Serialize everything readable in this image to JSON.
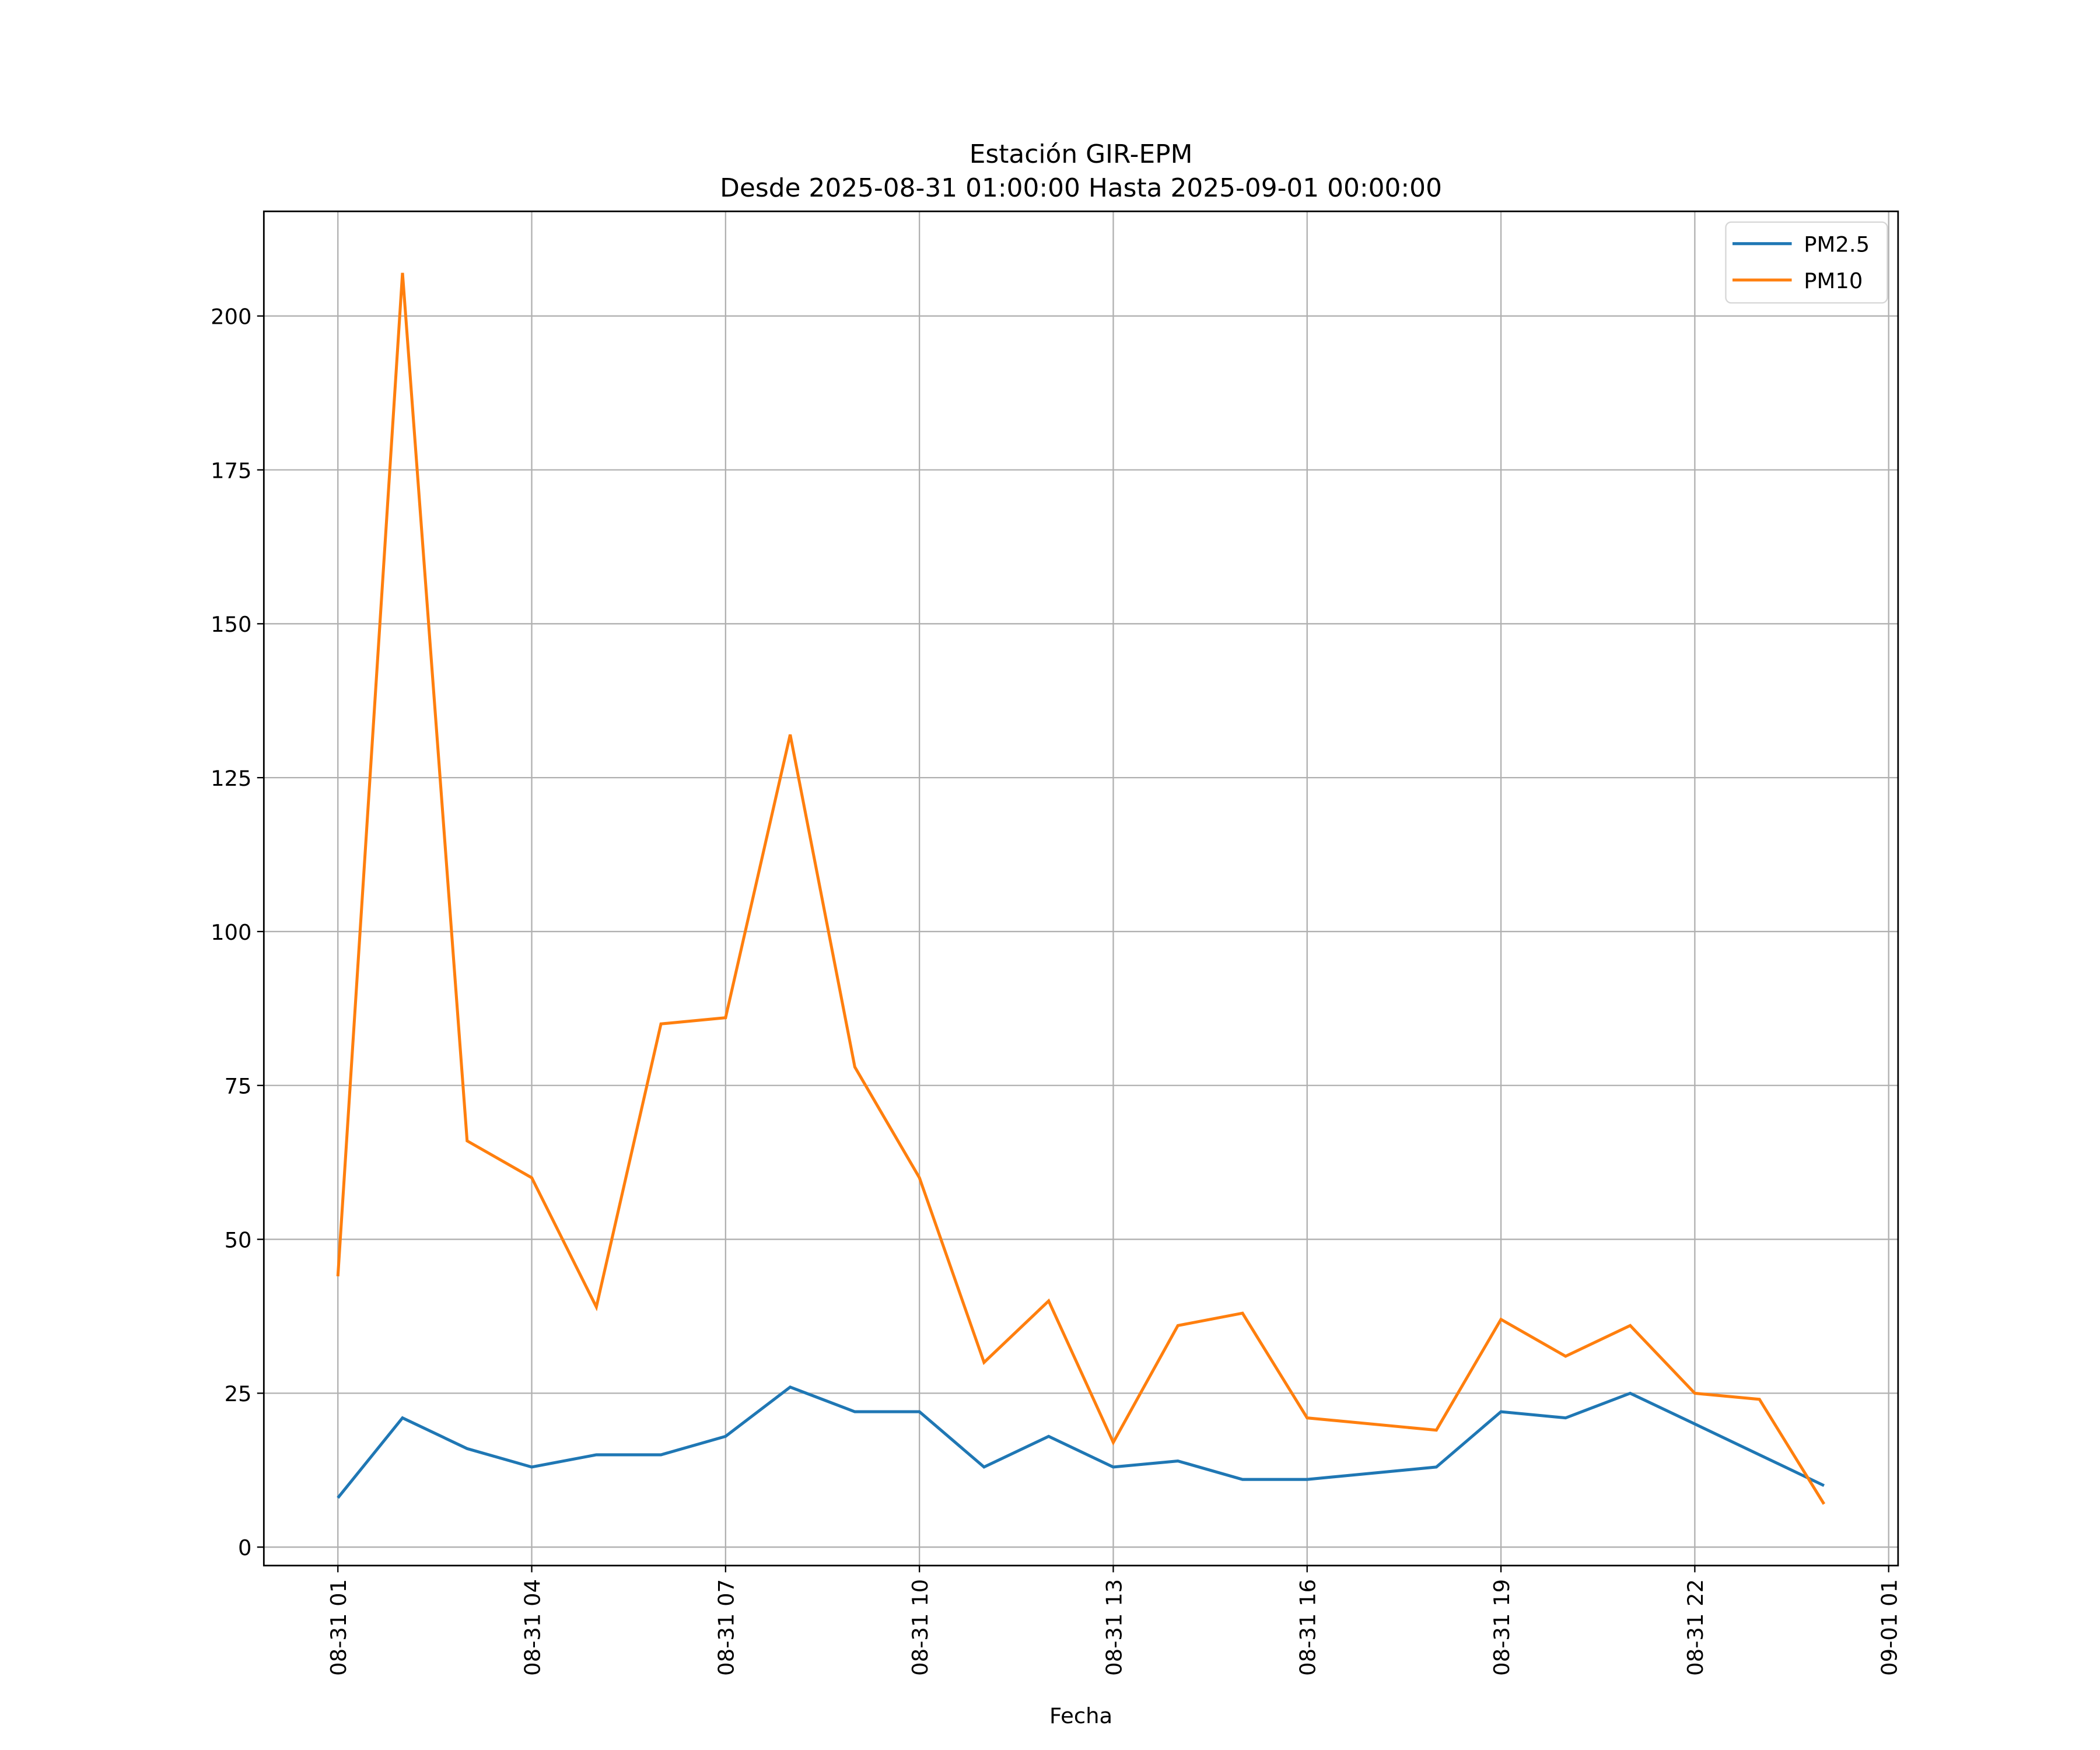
{
  "chart_data": {
    "type": "line",
    "title": "Estación GIR-EPM",
    "subtitle": "Desde 2025-08-31 01:00:00 Hasta 2025-09-01 00:00:00",
    "xlabel": "Fecha",
    "ylabel": "",
    "x": [
      "2025-08-31 01:00",
      "2025-08-31 02:00",
      "2025-08-31 03:00",
      "2025-08-31 04:00",
      "2025-08-31 05:00",
      "2025-08-31 06:00",
      "2025-08-31 07:00",
      "2025-08-31 08:00",
      "2025-08-31 09:00",
      "2025-08-31 10:00",
      "2025-08-31 11:00",
      "2025-08-31 12:00",
      "2025-08-31 13:00",
      "2025-08-31 14:00",
      "2025-08-31 15:00",
      "2025-08-31 16:00",
      "2025-08-31 18:00",
      "2025-08-31 19:00",
      "2025-08-31 20:00",
      "2025-08-31 21:00",
      "2025-08-31 22:00",
      "2025-08-31 23:00",
      "2025-09-01 00:00"
    ],
    "series": [
      {
        "name": "PM2.5",
        "color": "#1f77b4",
        "values": [
          8,
          21,
          16,
          13,
          15,
          15,
          18,
          26,
          22,
          22,
          13,
          18,
          13,
          14,
          11,
          11,
          13,
          22,
          21,
          25,
          20,
          15,
          10
        ]
      },
      {
        "name": "PM10",
        "color": "#ff7f0e",
        "values": [
          44,
          207,
          66,
          60,
          39,
          85,
          86,
          132,
          78,
          60,
          30,
          40,
          17,
          36,
          38,
          21,
          19,
          37,
          31,
          36,
          25,
          24,
          7
        ]
      }
    ],
    "xticks": [
      "08-31 01",
      "08-31 04",
      "08-31 07",
      "08-31 10",
      "08-31 13",
      "08-31 16",
      "08-31 19",
      "08-31 22",
      "09-01 01"
    ],
    "yticks": [
      "0",
      "25",
      "50",
      "75",
      "100",
      "125",
      "150",
      "175",
      "200"
    ],
    "ylim": [
      -3,
      217
    ],
    "grid": true,
    "legend": "top-right"
  }
}
